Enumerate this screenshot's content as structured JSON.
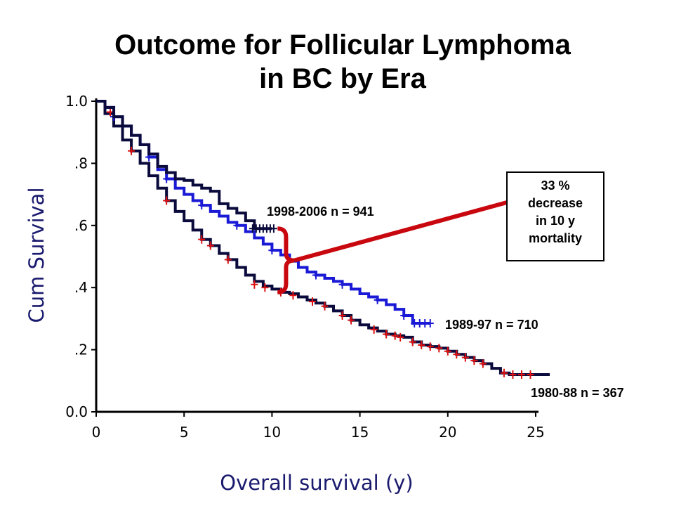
{
  "chart_data": {
    "type": "line",
    "title": "Outcome for Follicular Lymphoma\nin BC by Era",
    "title_lines": [
      "Outcome for Follicular Lymphoma",
      "in BC by Era"
    ],
    "xlabel": "Overall survival (y)",
    "ylabel": "Cum Survival",
    "xlim": [
      0,
      25
    ],
    "ylim": [
      0,
      1
    ],
    "x_ticks": [
      {
        "value": 0,
        "label": "0"
      },
      {
        "value": 5,
        "label": "5"
      },
      {
        "value": 10,
        "label": "10"
      },
      {
        "value": 15,
        "label": "15"
      },
      {
        "value": 20,
        "label": "20"
      },
      {
        "value": 25,
        "label": "25"
      }
    ],
    "y_ticks": [
      {
        "value": 0.0,
        "label": "0.0"
      },
      {
        "value": 0.2,
        "label": ".2"
      },
      {
        "value": 0.4,
        "label": ".4"
      },
      {
        "value": 0.6,
        "label": ".6"
      },
      {
        "value": 0.8,
        "label": ".8"
      },
      {
        "value": 1.0,
        "label": "1.0"
      }
    ],
    "grid": false,
    "series": [
      {
        "name": "1998-2006 n = 941",
        "color": "#0a0a3c",
        "censor_color": "#0a0a3c",
        "x": [
          0,
          0.5,
          1,
          1.5,
          2,
          2.5,
          3,
          3.5,
          4,
          4.5,
          5,
          5.5,
          6,
          6.5,
          7,
          7.5,
          8,
          8.5,
          9,
          9.5,
          10
        ],
        "y": [
          1.0,
          0.98,
          0.95,
          0.92,
          0.89,
          0.86,
          0.83,
          0.79,
          0.77,
          0.75,
          0.745,
          0.73,
          0.72,
          0.71,
          0.67,
          0.655,
          0.64,
          0.615,
          0.59,
          0.59,
          0.59
        ],
        "censor_x": [
          8.9,
          9.1,
          9.3,
          9.5,
          9.7,
          9.9,
          10.1
        ],
        "censor_y": [
          0.59,
          0.59,
          0.59,
          0.59,
          0.59,
          0.59,
          0.59
        ]
      },
      {
        "name": "1989-97 n = 710",
        "color": "#1a1ad6",
        "censor_color": "#1a1ad6",
        "x": [
          0,
          0.5,
          1,
          1.5,
          2,
          2.5,
          3,
          3.5,
          4,
          4.5,
          5,
          5.5,
          6,
          6.5,
          7,
          7.5,
          8,
          8.5,
          9,
          9.5,
          10,
          10.5,
          11,
          11.5,
          12,
          12.5,
          13,
          13.5,
          14,
          14.5,
          15,
          15.5,
          16,
          16.5,
          17,
          17.5,
          18,
          18.5,
          19
        ],
        "y": [
          1.0,
          0.98,
          0.95,
          0.92,
          0.89,
          0.86,
          0.82,
          0.78,
          0.75,
          0.72,
          0.7,
          0.68,
          0.665,
          0.645,
          0.63,
          0.61,
          0.6,
          0.58,
          0.56,
          0.54,
          0.52,
          0.505,
          0.485,
          0.465,
          0.45,
          0.44,
          0.43,
          0.42,
          0.41,
          0.395,
          0.38,
          0.37,
          0.36,
          0.345,
          0.33,
          0.31,
          0.285,
          0.285,
          0.285
        ],
        "censor_x": [
          1,
          3,
          4,
          6,
          8,
          10,
          12.5,
          14,
          16,
          17.5,
          18.1,
          18.4,
          18.7,
          19
        ],
        "censor_y": [
          0.95,
          0.82,
          0.75,
          0.665,
          0.6,
          0.52,
          0.44,
          0.41,
          0.36,
          0.31,
          0.285,
          0.285,
          0.285,
          0.285
        ]
      },
      {
        "name": "1980-88 n = 367",
        "color": "#0a0a3c",
        "censor_color": "#e01010",
        "x": [
          0,
          0.5,
          1,
          1.5,
          2,
          2.5,
          3,
          3.5,
          4,
          4.5,
          5,
          5.5,
          6,
          6.5,
          7,
          7.5,
          8,
          8.5,
          9,
          9.5,
          10,
          10.5,
          11,
          11.5,
          12,
          12.5,
          13,
          13.5,
          14,
          14.5,
          15,
          15.5,
          16,
          16.5,
          17,
          17.5,
          18,
          18.5,
          19,
          19.5,
          20,
          20.5,
          21,
          21.5,
          22,
          22.5,
          23,
          23.5,
          24,
          24.5,
          25,
          25.8
        ],
        "y": [
          1.0,
          0.96,
          0.92,
          0.875,
          0.84,
          0.8,
          0.76,
          0.72,
          0.68,
          0.645,
          0.615,
          0.585,
          0.555,
          0.535,
          0.51,
          0.49,
          0.465,
          0.44,
          0.42,
          0.405,
          0.395,
          0.385,
          0.38,
          0.37,
          0.36,
          0.35,
          0.34,
          0.325,
          0.31,
          0.295,
          0.28,
          0.27,
          0.26,
          0.25,
          0.245,
          0.24,
          0.225,
          0.215,
          0.21,
          0.205,
          0.195,
          0.185,
          0.175,
          0.165,
          0.155,
          0.14,
          0.125,
          0.12,
          0.12,
          0.12,
          0.12,
          0.12
        ],
        "censor_x": [
          0.8,
          2,
          4,
          6,
          6.5,
          7.5,
          9,
          9.6,
          10.5,
          11.2,
          12.3,
          13,
          14,
          14.5,
          15.8,
          16.5,
          17,
          17.3,
          18,
          18.5,
          19,
          19.5,
          20,
          20.5,
          21,
          21.5,
          22,
          23.2,
          23.7,
          24.2,
          24.7
        ],
        "censor_y": [
          0.965,
          0.84,
          0.68,
          0.555,
          0.535,
          0.49,
          0.41,
          0.4,
          0.385,
          0.375,
          0.355,
          0.34,
          0.31,
          0.295,
          0.265,
          0.25,
          0.245,
          0.24,
          0.225,
          0.215,
          0.21,
          0.205,
          0.195,
          0.185,
          0.175,
          0.165,
          0.155,
          0.125,
          0.12,
          0.12,
          0.12
        ]
      }
    ],
    "bracket": {
      "x": 10.8,
      "y_top": 0.59,
      "y_bottom": 0.385,
      "color": "#c8080e"
    },
    "annotation": {
      "lines": [
        "33 %",
        "decrease",
        "in 10 y",
        "mortality"
      ]
    }
  }
}
